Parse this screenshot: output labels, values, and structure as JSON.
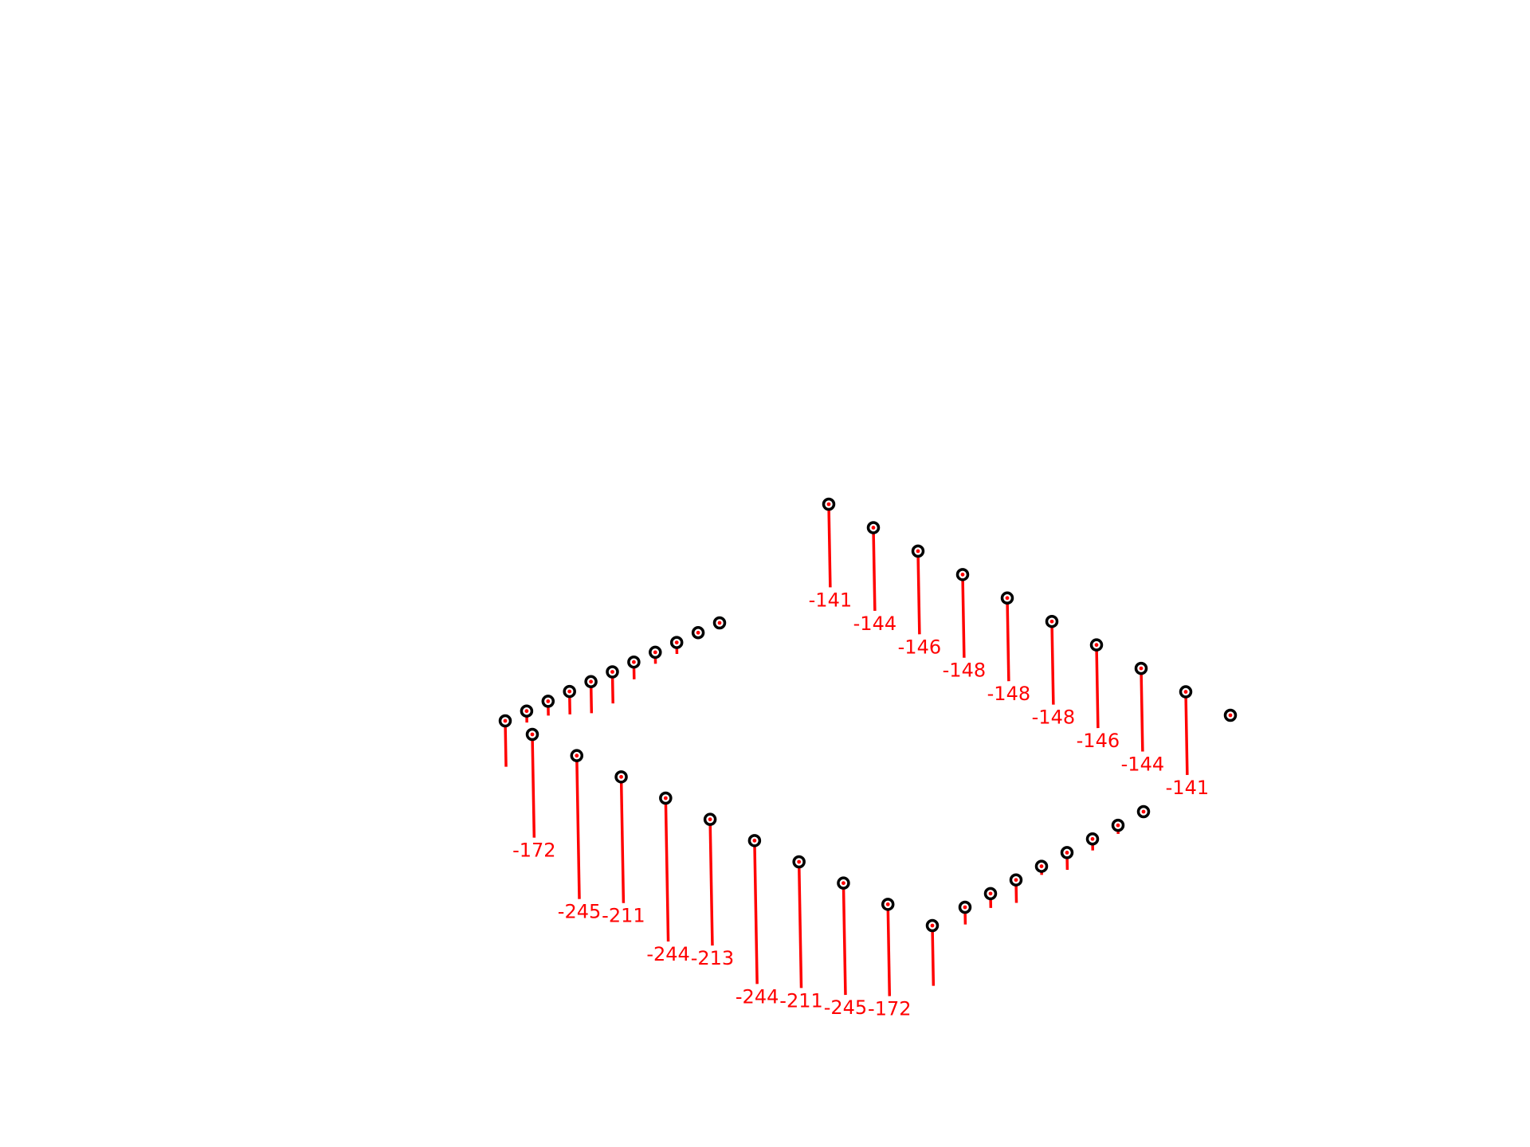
{
  "chart_data": {
    "type": "scatter",
    "subtype": "3d-stem-load-diagram",
    "title": "",
    "xlabel": "",
    "ylabel": "",
    "zlabel": "",
    "grid": false,
    "legend": "none",
    "colors": {
      "stem": "#ff0000",
      "marker_edge": "#000000",
      "marker_face": "#ffffff",
      "label": "#ff0000"
    },
    "groups": [
      {
        "name": "",
        "points": [
          {
            "stem": 1.6,
            "label": ""
          },
          {
            "stem": 0.4,
            "label": ""
          },
          {
            "stem": 0.5,
            "label": ""
          },
          {
            "stem": 0.8,
            "label": ""
          },
          {
            "stem": 1.1,
            "label": ""
          },
          {
            "stem": 1.1,
            "label": ""
          },
          {
            "stem": 0.6,
            "label": ""
          },
          {
            "stem": 0.4,
            "label": ""
          },
          {
            "stem": 0.4,
            "label": ""
          },
          {
            "stem": 0.2,
            "label": ""
          },
          {
            "stem": 0.0,
            "label": ""
          }
        ]
      },
      {
        "name": "",
        "points": [
          {
            "stem": 2.9,
            "label": "-141"
          },
          {
            "stem": 2.9,
            "label": "-144"
          },
          {
            "stem": 2.9,
            "label": "-146"
          },
          {
            "stem": 2.9,
            "label": "-148"
          },
          {
            "stem": 2.9,
            "label": "-148"
          },
          {
            "stem": 2.9,
            "label": "-148"
          },
          {
            "stem": 2.9,
            "label": "-146"
          },
          {
            "stem": 2.9,
            "label": "-144"
          },
          {
            "stem": 2.9,
            "label": "-141"
          },
          {
            "stem": 0.0,
            "label": ""
          }
        ]
      },
      {
        "name": "",
        "points": [
          {
            "stem": 3.6,
            "label": "-172"
          },
          {
            "stem": 5.0,
            "label": "-245"
          },
          {
            "stem": 4.4,
            "label": "-211"
          },
          {
            "stem": 5.0,
            "label": "-244"
          },
          {
            "stem": 4.4,
            "label": "-213"
          },
          {
            "stem": 5.0,
            "label": "-244"
          },
          {
            "stem": 4.4,
            "label": "-211"
          },
          {
            "stem": 3.9,
            "label": "-245"
          },
          {
            "stem": 3.2,
            "label": "-172"
          },
          {
            "stem": 2.1,
            "label": ""
          }
        ]
      },
      {
        "name": "",
        "points": [
          {
            "stem": 0.6,
            "label": ""
          },
          {
            "stem": 0.5,
            "label": ""
          },
          {
            "stem": 0.8,
            "label": ""
          },
          {
            "stem": 0.3,
            "label": ""
          },
          {
            "stem": 0.6,
            "label": ""
          },
          {
            "stem": 0.4,
            "label": ""
          },
          {
            "stem": 0.3,
            "label": ""
          },
          {
            "stem": 0.2,
            "label": ""
          }
        ]
      }
    ]
  }
}
